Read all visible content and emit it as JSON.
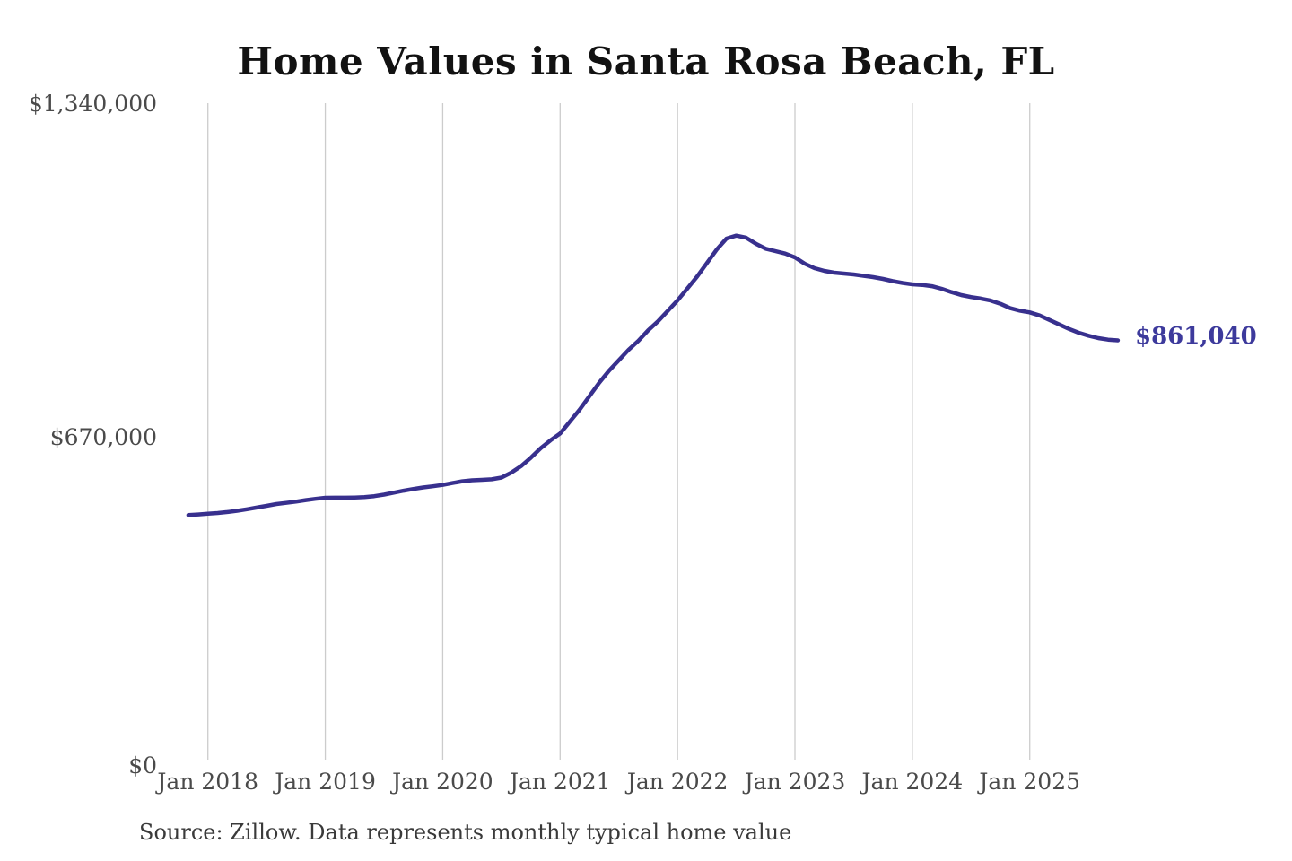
{
  "title": "Home Values in Santa Rosa Beach, FL",
  "end_label": "$861,040",
  "source_note": "Source: Zillow. Data represents monthly typical home value",
  "colors": {
    "line": "#38308e",
    "end_label": "#3d3a9c",
    "grid": "#cccccc",
    "axis_text": "#4a4a4a",
    "title_text": "#121212",
    "source_text": "#3a3a3a",
    "background": "#ffffff"
  },
  "chart_data": {
    "type": "line",
    "title": "Home Values in Santa Rosa Beach, FL",
    "xlabel": "",
    "ylabel": "",
    "ylim": [
      0,
      1340000
    ],
    "grid": "vertical-only",
    "legend": "none",
    "y_ticks": [
      {
        "label": "$0",
        "value": 0
      },
      {
        "label": "$670,000",
        "value": 670000
      },
      {
        "label": "$1,340,000",
        "value": 1340000
      }
    ],
    "x_ticks": [
      "Jan 2018",
      "Jan 2019",
      "Jan 2020",
      "Jan 2021",
      "Jan 2022",
      "Jan 2023",
      "Jan 2024",
      "Jan 2025"
    ],
    "x_months": {
      "start": "2017-11",
      "end": "2025-10",
      "interval": "monthly"
    },
    "final_value": 861040,
    "series": [
      {
        "name": "Monthly typical home value",
        "values": [
          508300,
          509500,
          511000,
          512500,
          514500,
          517000,
          520000,
          523500,
          527000,
          530500,
          533000,
          535500,
          538500,
          541000,
          543200,
          543500,
          543500,
          543800,
          544500,
          546500,
          549500,
          553600,
          557500,
          561000,
          564000,
          566500,
          569200,
          573000,
          576500,
          578500,
          579500,
          580500,
          584000,
          594000,
          607000,
          624000,
          643000,
          659000,
          673100,
          697200,
          721300,
          748400,
          775600,
          799800,
          820900,
          842000,
          860100,
          881300,
          899400,
          920500,
          941600,
          965700,
          990000,
          1017100,
          1044300,
          1066500,
          1072600,
          1068400,
          1056300,
          1046100,
          1041200,
          1036400,
          1028600,
          1015900,
          1006800,
          1001400,
          997800,
          996000,
          994200,
          991500,
          988700,
          985100,
          980600,
          977000,
          974200,
          973000,
          970500,
          965200,
          958500,
          952500,
          948500,
          945500,
          941500,
          935000,
          926000,
          921000,
          917500,
          911400,
          902300,
          893200,
          884200,
          876400,
          870400,
          865500,
          862500,
          861040
        ]
      }
    ]
  }
}
